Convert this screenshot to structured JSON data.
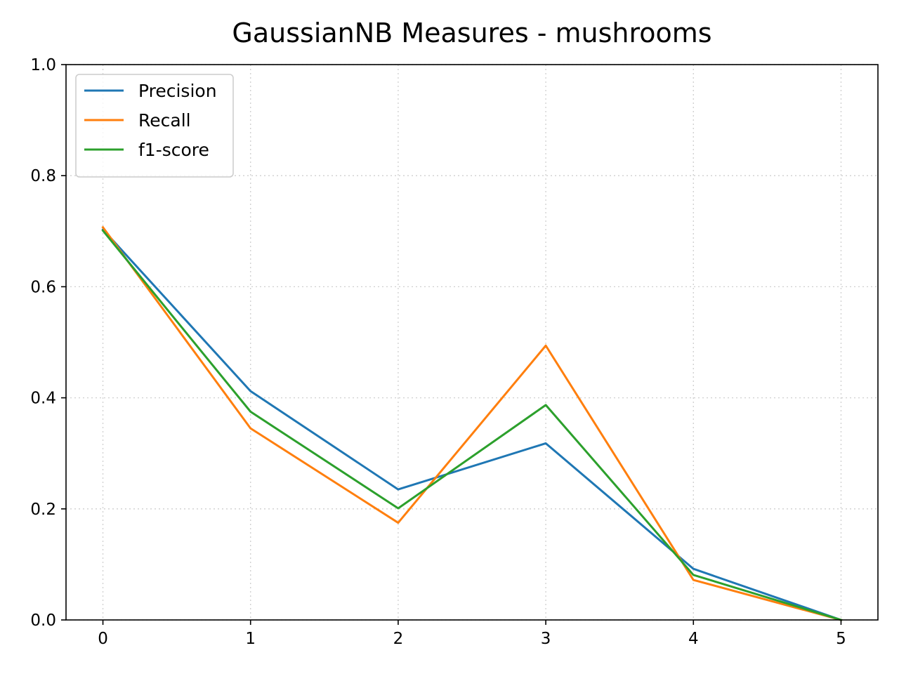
{
  "chart_data": {
    "type": "line",
    "title": "GaussianNB Measures - mushrooms",
    "xlabel": "",
    "ylabel": "",
    "x": [
      0,
      1,
      2,
      3,
      4,
      5
    ],
    "xticks": [
      "0",
      "1",
      "2",
      "3",
      "4",
      "5"
    ],
    "yticks": [
      "0.0",
      "0.2",
      "0.4",
      "0.6",
      "0.8",
      "1.0"
    ],
    "xlim": [
      -0.25,
      5.25
    ],
    "ylim": [
      0,
      1
    ],
    "grid": true,
    "legend_position": "top-left",
    "series": [
      {
        "name": "Precision",
        "color": "#1f77b4",
        "values": [
          0.703,
          0.412,
          0.235,
          0.318,
          0.092,
          0.0
        ]
      },
      {
        "name": "Recall",
        "color": "#ff7f0e",
        "values": [
          0.707,
          0.345,
          0.175,
          0.494,
          0.072,
          0.0
        ]
      },
      {
        "name": "f1-score",
        "color": "#2ca02c",
        "values": [
          0.701,
          0.375,
          0.201,
          0.387,
          0.081,
          0.0
        ]
      }
    ]
  }
}
